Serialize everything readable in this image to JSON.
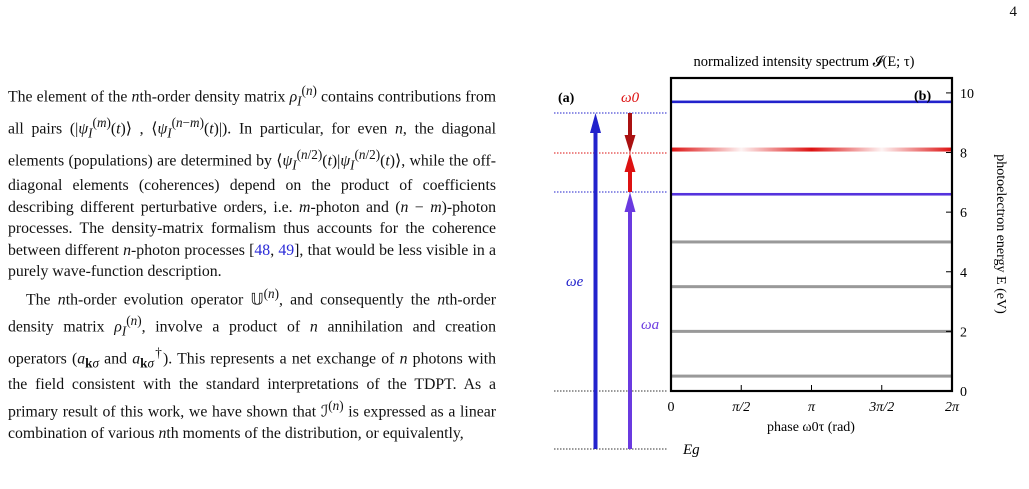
{
  "page_number": "4",
  "body": {
    "paragraph_1": "The element of the nth-order density matrix ρ_I^(n) contains contributions from all pairs (|ψ_I^(m)(t)⟩, ⟨ψ_I^(n−m)(t)|). In particular, for even n, the diagonal elements (populations) are determined by ⟨ψ_I^(n/2)(t)|ψ_I^(n/2)(t)⟩, while the off-diagonal elements (coherences) depend on the product of coefficients describing different perturbative orders, i.e. m-photon and (n − m)-photon processes. The density-matrix formalism thus accounts for the coherence between different n-photon processes [48, 49], that would be less visible in a purely wave-function description.",
    "paragraph_2": "The nth-order evolution operator 𝕌^(n), and consequently the nth-order density matrix ρ_I^(n), involve a product of n annihilation and creation operators (a_kσ and a†_kσ). This represents a net exchange of n photons with the field consistent with the standard interpretations of the TDPT. As a primary result of this work, we have shown that ℐ^(n) is expressed as a linear combination of various nth moments of the distribution, or equivalently,",
    "cite_1": "48",
    "cite_2": "49"
  },
  "figure": {
    "panel_a_label": "(a)",
    "panel_b_label": "(b)",
    "title": "normalized intensity spectrum 𝓘(E; τ)",
    "omega_0_label": "ω0",
    "omega_e_label": "ωe",
    "omega_a_label": "ωa",
    "ground_label": "Eg",
    "colors": {
      "blue": "#2222cc",
      "purple": "#6a3ae0",
      "red": "#dd1111"
    },
    "chart_data": {
      "type": "heatmap",
      "title": "normalized intensity spectrum 𝓘(E; τ)",
      "xlabel": "phase ω0τ (rad)",
      "ylabel": "photoelectron energy E (eV)",
      "xlim": [
        0,
        6.2832
      ],
      "ylim": [
        0,
        10.5
      ],
      "x_tick_values": [
        0,
        1.5708,
        3.1416,
        4.7124,
        6.2832
      ],
      "x_tick_labels": [
        "0",
        "π/2",
        "π",
        "3π/2",
        "2π"
      ],
      "y_tick_values": [
        0,
        2,
        4,
        6,
        8,
        10
      ],
      "y_tick_labels": [
        "0",
        "2",
        "4",
        "6",
        "8",
        "10"
      ],
      "bands": [
        {
          "energy": 9.7,
          "color": "#2222cc",
          "modulated": false
        },
        {
          "energy": 8.1,
          "color": "#dd1111",
          "modulated": true
        },
        {
          "energy": 6.6,
          "color": "#5533dd",
          "modulated": false
        },
        {
          "energy": 5.0,
          "color": "#777777",
          "modulated": false
        },
        {
          "energy": 3.5,
          "color": "#777777",
          "modulated": false
        },
        {
          "energy": 2.0,
          "color": "#777777",
          "modulated": false
        },
        {
          "energy": 0.5,
          "color": "#777777",
          "modulated": false
        }
      ]
    }
  }
}
